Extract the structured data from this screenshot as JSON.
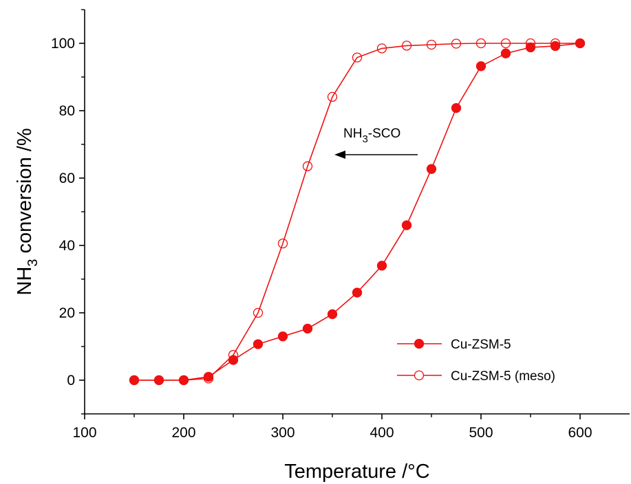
{
  "chart_data": {
    "type": "line",
    "title": "",
    "xlabel": "Temperature /°C",
    "ylabel": {
      "base": "NH",
      "sub": "3",
      "rest": " conversion /%"
    },
    "xlim": [
      100,
      650
    ],
    "ylim": [
      -10,
      110
    ],
    "x_ticks": [
      100,
      200,
      300,
      400,
      500,
      600
    ],
    "y_ticks": [
      0,
      20,
      40,
      60,
      80,
      100
    ],
    "grid": false,
    "legend_position": "bottom-right",
    "color": "#ee1111",
    "series": [
      {
        "name": "Cu-ZSM-5",
        "marker": "filled-circle",
        "x": [
          150,
          175,
          200,
          225,
          250,
          275,
          300,
          325,
          350,
          375,
          400,
          425,
          450,
          475,
          500,
          525,
          550,
          575,
          600
        ],
        "y": [
          0,
          0,
          0,
          1,
          6,
          10.7,
          13,
          15.3,
          19.6,
          26,
          34,
          46,
          62.7,
          80.8,
          93.2,
          97,
          98.8,
          99.2,
          100
        ]
      },
      {
        "name": "Cu-ZSM-5 (meso)",
        "marker": "open-circle",
        "x": [
          150,
          175,
          200,
          225,
          250,
          275,
          300,
          325,
          350,
          375,
          400,
          425,
          450,
          475,
          500,
          525,
          550,
          575,
          600
        ],
        "y": [
          0,
          0,
          0,
          0.5,
          7.5,
          20,
          40.6,
          63.5,
          84.1,
          95.8,
          98.5,
          99.3,
          99.6,
          99.9,
          100,
          100,
          100,
          100,
          100
        ]
      }
    ],
    "annotation": {
      "label_base": "NH",
      "label_sub": "3",
      "label_rest": "-SCO",
      "arrow": "left"
    }
  }
}
